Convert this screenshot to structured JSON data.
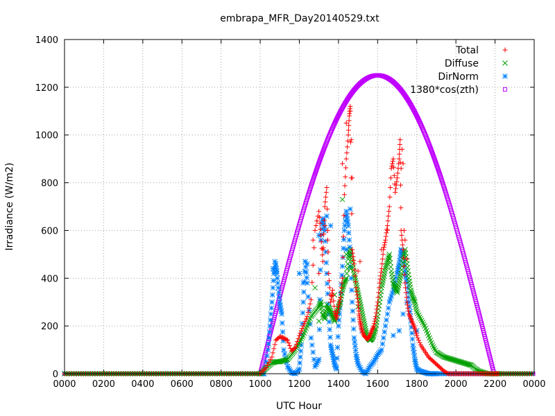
{
  "chart_data": {
    "type": "scatter",
    "title": "embrapa_MFR_Day20140529.txt",
    "xlabel": "UTC Hour",
    "ylabel": "Irradiance (W/m2)",
    "xlim": [
      0,
      24
    ],
    "ylim": [
      0,
      1400
    ],
    "xticks": [
      {
        "value": 0,
        "label": "0000"
      },
      {
        "value": 2,
        "label": "0200"
      },
      {
        "value": 4,
        "label": "0400"
      },
      {
        "value": 6,
        "label": "0600"
      },
      {
        "value": 8,
        "label": "0800"
      },
      {
        "value": 10,
        "label": "1000"
      },
      {
        "value": 12,
        "label": "1200"
      },
      {
        "value": 14,
        "label": "1400"
      },
      {
        "value": 16,
        "label": "1600"
      },
      {
        "value": 18,
        "label": "1800"
      },
      {
        "value": 20,
        "label": "2000"
      },
      {
        "value": 22,
        "label": "2200"
      },
      {
        "value": 24,
        "label": "0000"
      }
    ],
    "yticks": [
      0,
      200,
      400,
      600,
      800,
      1000,
      1200,
      1400
    ],
    "grid": true,
    "legend_position": "top-right",
    "series": [
      {
        "name": "Total",
        "color": "#ff0000",
        "marker": "plus",
        "x": [
          10.0,
          10.3,
          10.6,
          10.8,
          11.0,
          11.2,
          11.4,
          11.6,
          11.8,
          12.0,
          12.2,
          12.4,
          12.6,
          12.8,
          13.0,
          13.1,
          13.2,
          13.3,
          13.4,
          13.5,
          13.6,
          13.7,
          13.8,
          13.9,
          14.0,
          14.1,
          14.2,
          14.3,
          14.4,
          14.5,
          14.55,
          14.6,
          14.7,
          14.8,
          14.9,
          15.0,
          15.05,
          15.1,
          15.15,
          15.2,
          15.3,
          15.4,
          15.5,
          15.6,
          15.7,
          15.8,
          15.9,
          16.0,
          16.1,
          16.2,
          16.3,
          16.4,
          16.5,
          16.6,
          16.7,
          16.8,
          16.9,
          17.0,
          17.1,
          17.15,
          17.2,
          17.3,
          17.4,
          17.5,
          17.6,
          17.7,
          17.8,
          17.9,
          18.0,
          18.2,
          18.4,
          18.6,
          18.8,
          19.0,
          19.2,
          19.4,
          19.6,
          19.8,
          20.0,
          20.2,
          20.4,
          20.6,
          20.8,
          21.0,
          21.2,
          21.4,
          21.6,
          21.8,
          22.0,
          22.2
        ],
        "y": [
          0,
          25,
          70,
          140,
          155,
          150,
          140,
          95,
          110,
          160,
          200,
          240,
          310,
          600,
          680,
          580,
          470,
          700,
          780,
          420,
          300,
          350,
          260,
          230,
          280,
          320,
          400,
          750,
          900,
          1000,
          1080,
          1120,
          520,
          460,
          360,
          300,
          250,
          220,
          200,
          180,
          160,
          150,
          145,
          160,
          180,
          200,
          240,
          300,
          380,
          440,
          520,
          560,
          620,
          700,
          860,
          900,
          760,
          820,
          900,
          980,
          600,
          520,
          380,
          300,
          250,
          230,
          210,
          190,
          160,
          120,
          95,
          70,
          55,
          40,
          25,
          10,
          0,
          0,
          0,
          0,
          0,
          0,
          0,
          0,
          0,
          0,
          0,
          0,
          0,
          0
        ],
        "x_extra": [
          11.1,
          12.7,
          12.9,
          13.0,
          13.2,
          13.3,
          13.45,
          14.2,
          14.4,
          14.6,
          14.65,
          14.7,
          15.0,
          15.1,
          16.2,
          16.5,
          17.2,
          17.25,
          17.3,
          17.35,
          17.4,
          17.5
        ],
        "y_extra": [
          150,
          560,
          640,
          420,
          520,
          620,
          560,
          880,
          1050,
          1100,
          980,
          820,
          430,
          470,
          520,
          600,
          860,
          940,
          880,
          600,
          560,
          480
        ]
      },
      {
        "name": "Diffuse",
        "color": "#00a000",
        "marker": "cross",
        "x": [
          10.0,
          10.2,
          10.4,
          10.6,
          10.8,
          11.0,
          11.2,
          11.4,
          11.6,
          11.8,
          12.0,
          12.2,
          12.4,
          12.6,
          12.8,
          13.0,
          13.1,
          13.2,
          13.3,
          13.4,
          13.5,
          13.6,
          13.7,
          13.8,
          13.9,
          14.0,
          14.1,
          14.2,
          14.3,
          14.4,
          14.5,
          14.6,
          14.7,
          14.8,
          14.9,
          15.0,
          15.1,
          15.2,
          15.3,
          15.4,
          15.5,
          15.6,
          15.7,
          15.8,
          15.9,
          16.0,
          16.1,
          16.2,
          16.3,
          16.4,
          16.5,
          16.6,
          16.7,
          16.8,
          16.9,
          17.0,
          17.1,
          17.2,
          17.3,
          17.4,
          17.5,
          17.6,
          17.7,
          17.8,
          17.9,
          18.0,
          18.2,
          18.4,
          18.6,
          18.8,
          19.0,
          19.2,
          19.4,
          19.6,
          19.8,
          20.0,
          20.2,
          20.4,
          20.6,
          20.8,
          21.0,
          21.2,
          21.4,
          21.6,
          21.8,
          22.0,
          22.2
        ],
        "y": [
          0,
          15,
          30,
          45,
          50,
          50,
          55,
          60,
          80,
          100,
          130,
          160,
          200,
          240,
          260,
          280,
          300,
          250,
          230,
          270,
          280,
          260,
          240,
          220,
          250,
          280,
          300,
          350,
          380,
          400,
          480,
          520,
          470,
          420,
          380,
          340,
          300,
          260,
          220,
          180,
          150,
          140,
          145,
          160,
          190,
          240,
          300,
          360,
          400,
          440,
          470,
          500,
          430,
          380,
          360,
          340,
          380,
          420,
          480,
          520,
          460,
          400,
          350,
          320,
          300,
          260,
          230,
          200,
          160,
          120,
          90,
          80,
          70,
          65,
          60,
          55,
          50,
          45,
          40,
          35,
          20,
          10,
          5,
          0,
          0,
          0,
          0
        ],
        "x_extra": [
          12.8,
          13.0,
          13.4,
          13.8,
          14.2,
          14.4,
          14.6,
          15.0
        ],
        "y_extra": [
          360,
          220,
          290,
          330,
          730,
          500,
          440,
          280
        ]
      },
      {
        "name": "DirNorm",
        "color": "#0080ff",
        "marker": "star",
        "x": [
          10.0,
          10.2,
          10.4,
          10.5,
          10.6,
          10.7,
          10.8,
          10.9,
          11.0,
          11.1,
          11.2,
          11.4,
          11.6,
          11.8,
          12.0,
          12.1,
          12.2,
          12.3,
          12.4,
          12.6,
          12.8,
          13.0,
          13.1,
          13.2,
          13.3,
          13.4,
          13.5,
          13.6,
          13.7,
          13.8,
          13.9,
          14.0,
          14.1,
          14.2,
          14.3,
          14.4,
          14.5,
          14.6,
          14.7,
          14.8,
          14.9,
          15.0,
          15.2,
          15.4,
          15.6,
          15.8,
          16.0,
          16.2,
          16.4,
          16.6,
          16.8,
          17.0,
          17.1,
          17.2,
          17.3,
          17.4,
          17.5,
          17.6,
          17.7,
          17.8,
          17.9,
          18.0,
          18.2,
          18.4,
          18.6,
          18.8,
          19.0,
          19.5,
          20.0,
          20.5,
          21.0,
          21.5,
          22.0
        ],
        "y": [
          0,
          0,
          100,
          200,
          300,
          420,
          460,
          380,
          300,
          250,
          100,
          30,
          5,
          0,
          20,
          120,
          300,
          470,
          380,
          150,
          30,
          60,
          560,
          650,
          600,
          420,
          250,
          120,
          80,
          40,
          20,
          200,
          300,
          450,
          600,
          680,
          620,
          500,
          300,
          150,
          80,
          40,
          10,
          0,
          30,
          50,
          80,
          100,
          200,
          300,
          350,
          420,
          460,
          520,
          500,
          430,
          380,
          300,
          220,
          120,
          60,
          20,
          10,
          5,
          0,
          0,
          0,
          0,
          0,
          0,
          0,
          0,
          0
        ],
        "x_extra": [
          10.65,
          10.75,
          10.85,
          12.0,
          12.2,
          12.4,
          13.0,
          13.2,
          13.4,
          14.4,
          14.6,
          15.2,
          16.8,
          17.1,
          17.3,
          17.5,
          18.0,
          12.3,
          13.6,
          14.0
        ],
        "y_extra": [
          440,
          470,
          430,
          420,
          380,
          460,
          580,
          640,
          660,
          520,
          690,
          180,
          160,
          180,
          250,
          300,
          180,
          470,
          620,
          260
        ]
      },
      {
        "name": "1380*cos(zth)",
        "color": "#c000ff",
        "marker": "square",
        "curve": {
          "x_start": 10.0,
          "x_end": 21.95,
          "x_peak": 16.0,
          "y_peak": 1250
        }
      }
    ]
  }
}
